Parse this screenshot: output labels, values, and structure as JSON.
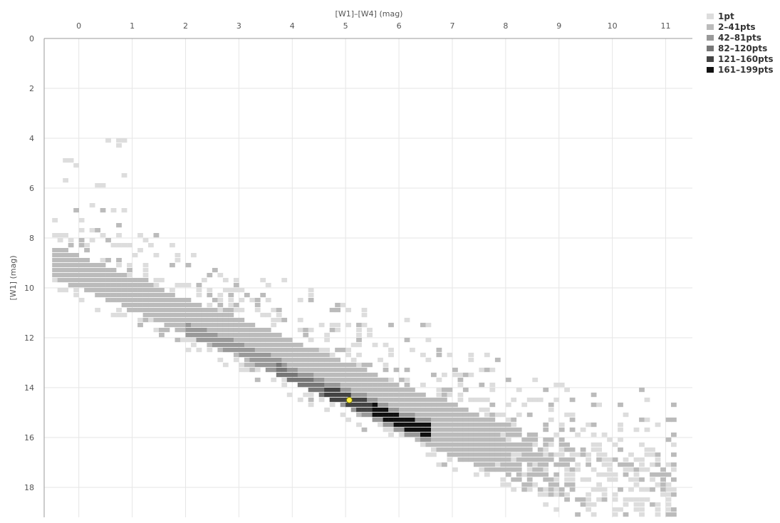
{
  "chart_data": {
    "type": "heatmap",
    "title": "",
    "xlabel": "[W1]–[W4] (mag)",
    "ylabel": "[W1] (mag)",
    "x_axis_position": "top",
    "y_axis_inverted": true,
    "xlim": [
      -0.65,
      11.5
    ],
    "ylim": [
      0,
      19.2
    ],
    "x_ticks": [
      0,
      1,
      2,
      3,
      4,
      5,
      6,
      7,
      8,
      9,
      10,
      11
    ],
    "y_ticks": [
      0,
      2,
      4,
      6,
      8,
      10,
      12,
      14,
      16,
      18
    ],
    "grid": true,
    "legend_position": "top-right",
    "bin_size": {
      "x": 0.1,
      "y": 0.2
    },
    "bins": [
      {
        "label": "1pt",
        "color": "#dddddd"
      },
      {
        "label": "2–41pts",
        "color": "#bbbbbb"
      },
      {
        "label": "42–81pts",
        "color": "#999999"
      },
      {
        "label": "82–120pts",
        "color": "#777777"
      },
      {
        "label": "121–160pts",
        "color": "#444444"
      },
      {
        "label": "161–199pts",
        "color": "#111111"
      }
    ],
    "main_sequence": {
      "trend": [
        [
          -0.4,
          9.2
        ],
        [
          1.0,
          10.4
        ],
        [
          2.0,
          11.4
        ],
        [
          3.0,
          12.3
        ],
        [
          4.0,
          13.3
        ],
        [
          5.0,
          14.3
        ],
        [
          6.0,
          15.3
        ],
        [
          7.0,
          16.3
        ],
        [
          8.0,
          17.1
        ],
        [
          9.0,
          17.9
        ],
        [
          10.0,
          18.6
        ],
        [
          11.0,
          19.0
        ]
      ],
      "dense_core": [
        [
          2.0,
          11.6
        ],
        [
          3.0,
          12.4
        ],
        [
          4.0,
          13.6
        ],
        [
          5.0,
          14.4
        ],
        [
          5.5,
          14.8
        ],
        [
          6.0,
          15.3
        ],
        [
          6.6,
          15.7
        ]
      ]
    },
    "highlight_point": {
      "x": 5.07,
      "y": 14.5,
      "color": "#ffee44"
    }
  }
}
